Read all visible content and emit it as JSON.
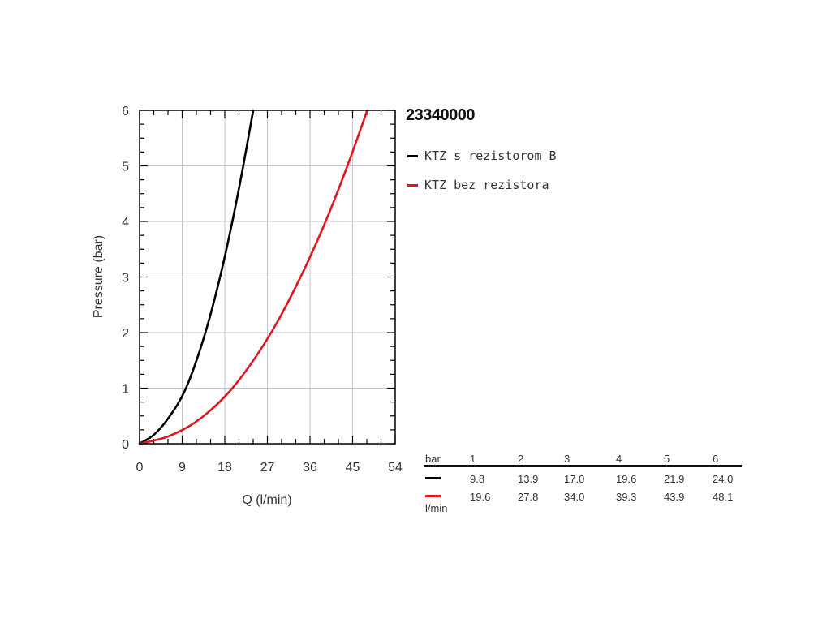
{
  "chart_data": {
    "type": "line",
    "title": "23340000",
    "xlabel": "Q (l/min)",
    "ylabel": "Pressure (bar)",
    "xlim": [
      0,
      54
    ],
    "ylim": [
      0,
      6
    ],
    "xticks": [
      0,
      9,
      18,
      27,
      36,
      45,
      54
    ],
    "yticks": [
      0,
      1,
      2,
      3,
      4,
      5,
      6
    ],
    "grid": true,
    "legend_position": "right of plot, top",
    "series": [
      {
        "name": "KTZ s rezistorom B",
        "color": "#000000",
        "x": [
          0,
          3,
          6,
          9.8,
          13.9,
          17.0,
          19.6,
          21.9,
          24.0
        ],
        "y": [
          0,
          0.16,
          0.45,
          1,
          2,
          3,
          4,
          5,
          6
        ]
      },
      {
        "name": "KTZ bez rezistora",
        "color": "#e0181e",
        "x": [
          0,
          6,
          12,
          19.6,
          27.8,
          34.0,
          39.3,
          43.9,
          48.1
        ],
        "y": [
          0,
          0.13,
          0.4,
          1,
          2,
          3,
          4,
          5,
          6
        ]
      }
    ]
  },
  "table": {
    "header_label": "bar",
    "unit_label": "l/min",
    "columns": [
      "1",
      "2",
      "3",
      "4",
      "5",
      "6"
    ],
    "rows": [
      {
        "color": "#000000",
        "values": [
          "9.8",
          "13.9",
          "17.0",
          "19.6",
          "21.9",
          "24.0"
        ]
      },
      {
        "color": "#e0181e",
        "values": [
          "19.6",
          "27.8",
          "34.0",
          "39.3",
          "43.9",
          "48.1"
        ]
      }
    ]
  }
}
